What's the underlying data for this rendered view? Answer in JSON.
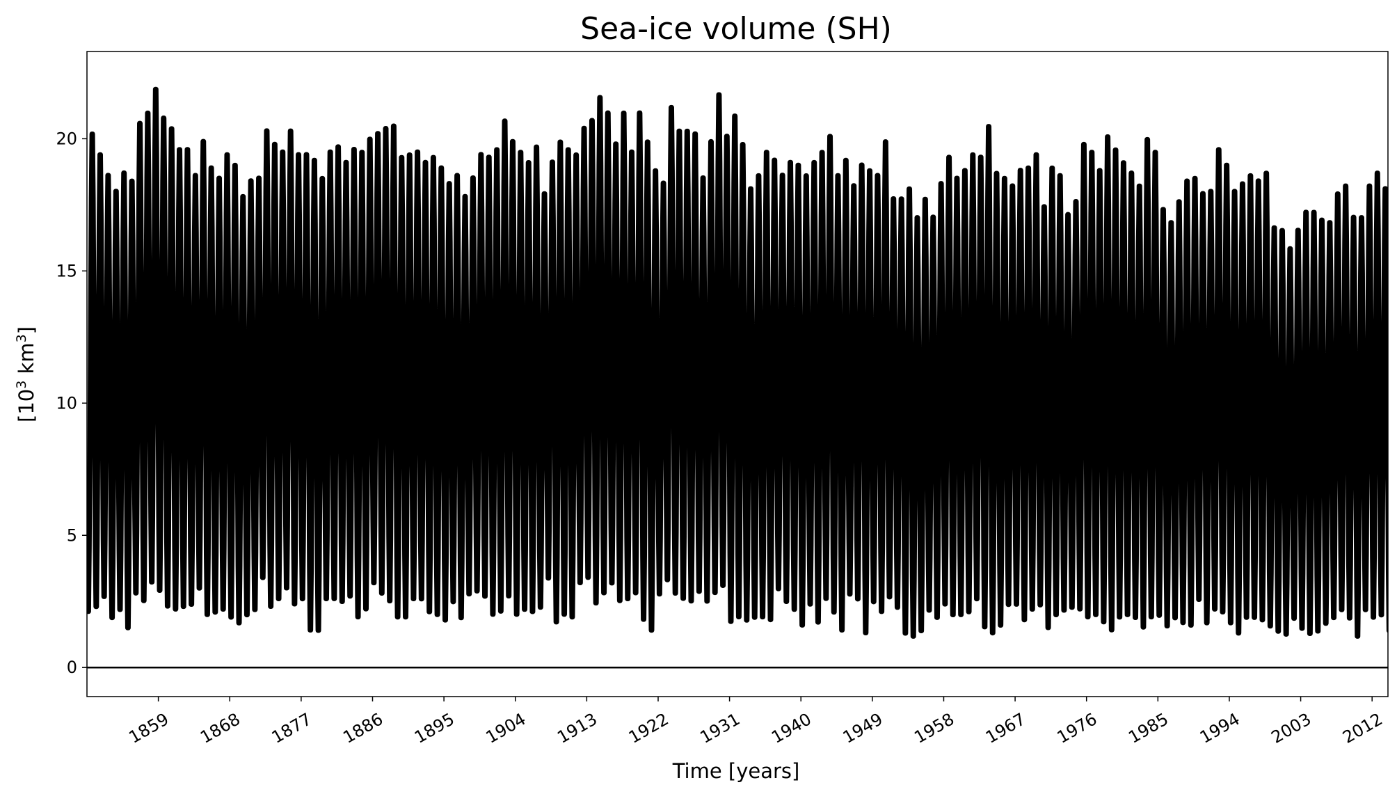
{
  "chart_data": {
    "type": "line",
    "title": "Sea-ice volume (SH)",
    "xlabel": "Time [years]",
    "ylabel": {
      "prefix": "[10",
      "sup": "3",
      "suffix": " km",
      "sup2": "3",
      "end": "]"
    },
    "xlim": [
      1850,
      2014
    ],
    "ylim": [
      -1.1,
      23.3
    ],
    "xticks": [
      1859,
      1868,
      1877,
      1886,
      1895,
      1904,
      1913,
      1922,
      1931,
      1940,
      1949,
      1958,
      1967,
      1976,
      1985,
      1994,
      2003,
      2012
    ],
    "yticks": [
      0,
      5,
      10,
      15,
      20
    ],
    "reference_line": 0,
    "grid": false,
    "legend": "none",
    "line_color": "#000000",
    "series": [
      {
        "resolution": "monthly, seasonal cycle (values read at annual max / min)",
        "annual_max": [
          20.5,
          19.7,
          18.9,
          18.3,
          19.0,
          18.7,
          20.9,
          21.3,
          22.2,
          21.1,
          20.7,
          19.9,
          19.9,
          18.9,
          20.2,
          19.2,
          18.8,
          19.7,
          19.3,
          18.1,
          18.7,
          18.8,
          20.6,
          20.1,
          19.8,
          20.6,
          19.7,
          19.7,
          19.5,
          18.8,
          19.8,
          20.0,
          19.4,
          19.9,
          19.8,
          20.3,
          20.5,
          20.7,
          20.8,
          19.6,
          19.7,
          19.8,
          19.4,
          19.6,
          19.2,
          18.6,
          18.9,
          18.1,
          18.8,
          19.7,
          19.6,
          19.9,
          21.0,
          20.2,
          19.8,
          19.4,
          20.0,
          18.2,
          19.4,
          20.2,
          19.9,
          19.7,
          20.7,
          21.0,
          21.9,
          21.3,
          20.1,
          21.3,
          19.8,
          21.3,
          20.2,
          19.1,
          18.6,
          21.5,
          20.6,
          20.6,
          20.5,
          18.8,
          20.2,
          22.0,
          20.4,
          21.2,
          20.1,
          18.4,
          18.9,
          19.8,
          19.5,
          18.9,
          19.4,
          19.3,
          18.9,
          19.4,
          19.8,
          20.4,
          18.9,
          19.5,
          18.5,
          19.3,
          19.1,
          18.9,
          20.2,
          18.0,
          18.0,
          18.4,
          17.3,
          18.0,
          17.3,
          18.6,
          19.6,
          18.8,
          19.1,
          19.7,
          19.6,
          20.8,
          19.0,
          18.8,
          18.5,
          19.1,
          19.2,
          19.7,
          17.7,
          19.2,
          18.9,
          17.4,
          17.9,
          20.1,
          19.8,
          19.1,
          20.4,
          19.9,
          19.4,
          19.0,
          18.5,
          20.3,
          19.8,
          17.6,
          17.1,
          17.9,
          18.7,
          18.8,
          18.2,
          18.3,
          19.9,
          19.3,
          18.3,
          18.6,
          18.9,
          18.7,
          19.0,
          16.9,
          16.8,
          16.1,
          16.8,
          17.5,
          17.5,
          17.2,
          17.1,
          18.2,
          18.5,
          17.3,
          17.3,
          18.5,
          19.0,
          18.4,
          18.3,
          16.9,
          17.3
        ],
        "annual_min": [
          1.8,
          2.0,
          2.4,
          1.6,
          1.9,
          1.2,
          2.5,
          2.2,
          2.9,
          2.6,
          2.0,
          1.9,
          2.0,
          2.1,
          2.7,
          1.7,
          1.8,
          1.9,
          1.6,
          1.4,
          1.7,
          1.9,
          3.1,
          2.0,
          2.3,
          2.7,
          2.1,
          2.3,
          1.1,
          1.1,
          2.3,
          2.3,
          2.2,
          2.4,
          1.6,
          1.9,
          2.9,
          2.5,
          2.2,
          1.6,
          1.6,
          2.3,
          2.3,
          1.8,
          1.7,
          1.5,
          2.2,
          1.6,
          2.5,
          2.6,
          2.4,
          1.7,
          1.8,
          2.4,
          1.7,
          1.9,
          1.8,
          2.0,
          3.1,
          1.4,
          1.7,
          1.6,
          2.9,
          3.1,
          2.1,
          2.5,
          2.9,
          2.2,
          2.3,
          2.5,
          1.5,
          1.1,
          2.5,
          3.0,
          2.5,
          2.3,
          2.2,
          2.6,
          2.2,
          2.5,
          2.8,
          1.4,
          1.6,
          1.5,
          1.6,
          1.6,
          1.5,
          2.7,
          2.2,
          1.9,
          1.3,
          2.1,
          1.4,
          2.3,
          1.8,
          1.1,
          2.5,
          2.3,
          1.0,
          2.2,
          1.8,
          2.4,
          2.0,
          1.0,
          0.9,
          1.1,
          1.9,
          1.6,
          2.1,
          1.7,
          1.7,
          1.8,
          2.3,
          1.2,
          1.0,
          1.3,
          2.1,
          2.1,
          1.5,
          1.9,
          2.1,
          1.2,
          1.7,
          1.9,
          2.0,
          1.9,
          1.6,
          1.7,
          1.4,
          1.1,
          1.6,
          1.7,
          1.6,
          1.2,
          1.6,
          1.7,
          1.3,
          1.6,
          1.4,
          1.3,
          2.3,
          1.4,
          1.9,
          1.8,
          1.4,
          1.0,
          1.6,
          1.6,
          1.5,
          1.3,
          1.1,
          1.0,
          1.6,
          1.2,
          1.0,
          1.1,
          1.4,
          1.6,
          1.9,
          1.6,
          0.9,
          1.9,
          1.6,
          1.7,
          1.1,
          1.5
        ]
      }
    ]
  }
}
